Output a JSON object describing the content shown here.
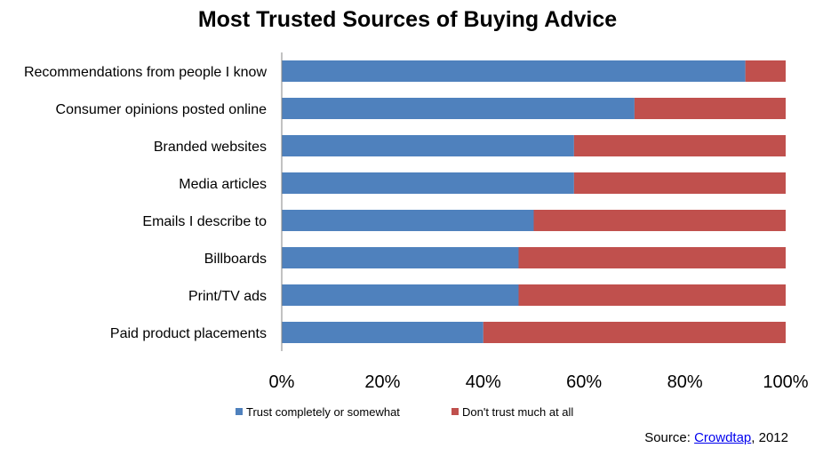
{
  "chart_data": {
    "type": "bar",
    "orientation": "horizontal",
    "stacked": "percent",
    "title": "Most Trusted Sources of Buying Advice",
    "categories": [
      "Recommendations from people I know",
      "Consumer opinions posted online",
      "Branded websites",
      "Media articles",
      "Emails I describe to",
      "Billboards",
      "Print/TV ads",
      "Paid product placements"
    ],
    "series": [
      {
        "name": "Trust completely or somewhat",
        "color": "#4F81BD",
        "values": [
          92,
          70,
          58,
          58,
          50,
          47,
          47,
          40
        ]
      },
      {
        "name": "Don't trust much at all",
        "color": "#C0504D",
        "values": [
          8,
          30,
          42,
          42,
          50,
          53,
          53,
          60
        ]
      }
    ],
    "xlim": [
      0,
      100
    ],
    "x_ticks": [
      "0%",
      "20%",
      "40%",
      "60%",
      "80%",
      "100%"
    ],
    "grid": false,
    "legend_position": "bottom"
  },
  "source": {
    "prefix": "Source: ",
    "link_text": "Crowdtap",
    "suffix": ", 2012"
  }
}
